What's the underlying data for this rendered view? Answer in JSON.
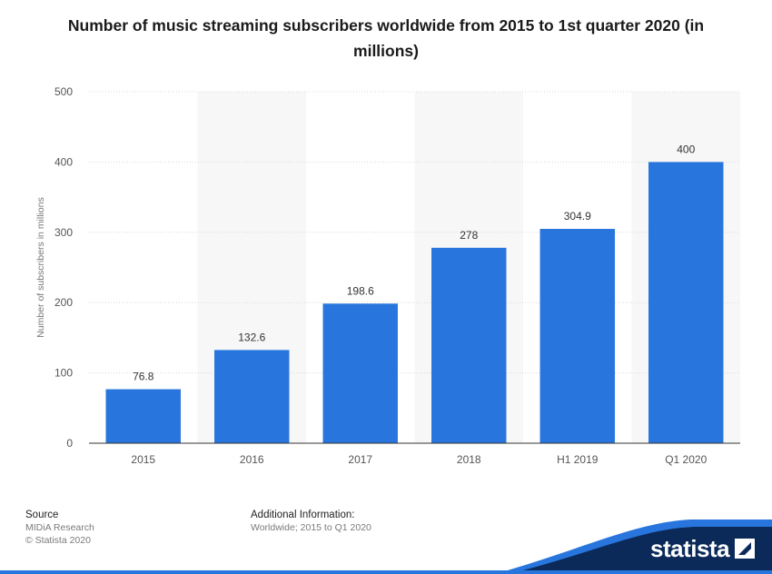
{
  "chart_data": {
    "type": "bar",
    "title": "Number of music streaming subscribers worldwide from 2015 to 1st quarter 2020 (in millions)",
    "xlabel": "",
    "ylabel": "Number of subscribers in millions",
    "categories": [
      "2015",
      "2016",
      "2017",
      "2018",
      "H1 2019",
      "Q1 2020"
    ],
    "values": [
      76.8,
      132.6,
      198.6,
      278,
      304.9,
      400
    ],
    "data_labels": [
      "76.8",
      "132.6",
      "198.6",
      "278",
      "304.9",
      "400"
    ],
    "ylim": [
      0,
      500
    ],
    "yticks": [
      0,
      100,
      200,
      300,
      400,
      500
    ],
    "bar_color": "#2876dd",
    "grid": true
  },
  "footer": {
    "source_heading": "Source",
    "source_lines": [
      "MIDiA Research",
      "© Statista 2020"
    ],
    "info_heading": "Additional Information:",
    "info_lines": [
      "Worldwide; 2015 to Q1 2020"
    ]
  },
  "brand": {
    "name": "statista",
    "color": "#0b2a5a",
    "accent": "#2876dd"
  }
}
